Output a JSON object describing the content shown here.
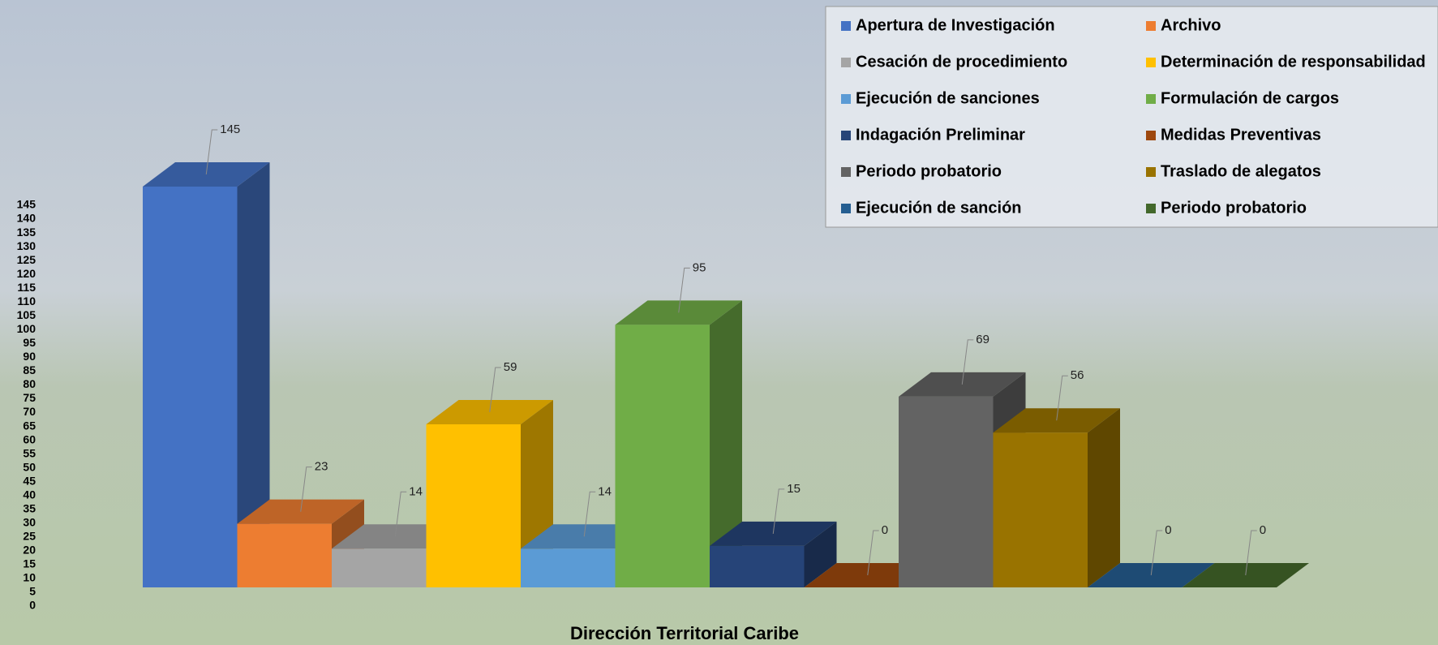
{
  "chart_data": {
    "type": "bar3d",
    "categories": [
      "Dirección Territorial Caribe"
    ],
    "ylim": [
      0,
      145
    ],
    "yticks": [
      0,
      5,
      10,
      15,
      20,
      25,
      30,
      35,
      40,
      45,
      50,
      55,
      60,
      65,
      70,
      75,
      80,
      85,
      90,
      95,
      100,
      105,
      110,
      115,
      120,
      125,
      130,
      135,
      140,
      145
    ],
    "legend": "top-right",
    "series": [
      {
        "name": "Apertura de Investigación",
        "color": "#4472c4",
        "values": [
          145
        ]
      },
      {
        "name": "Archivo",
        "color": "#ed7d31",
        "values": [
          23
        ]
      },
      {
        "name": "Cesación de procedimiento",
        "color": "#a5a5a5",
        "values": [
          14
        ]
      },
      {
        "name": "Determinación de responsabilidad",
        "color": "#ffc000",
        "values": [
          59
        ]
      },
      {
        "name": "Ejecución de sanciones",
        "color": "#5b9bd5",
        "values": [
          14
        ]
      },
      {
        "name": "Formulación de cargos",
        "color": "#70ad47",
        "values": [
          95
        ]
      },
      {
        "name": "Indagación Preliminar",
        "color": "#264478",
        "values": [
          15
        ]
      },
      {
        "name": "Medidas Preventivas",
        "color": "#9e480e",
        "values": [
          0
        ]
      },
      {
        "name": "Periodo probatorio",
        "color": "#636363",
        "values": [
          69
        ]
      },
      {
        "name": "Traslado de alegatos",
        "color": "#997300",
        "values": [
          56
        ]
      },
      {
        "name": "Ejecución de sanción",
        "color": "#255e91",
        "values": [
          0
        ]
      },
      {
        "name": "Periodo probatorio",
        "color": "#43682b",
        "values": [
          0
        ]
      }
    ]
  }
}
